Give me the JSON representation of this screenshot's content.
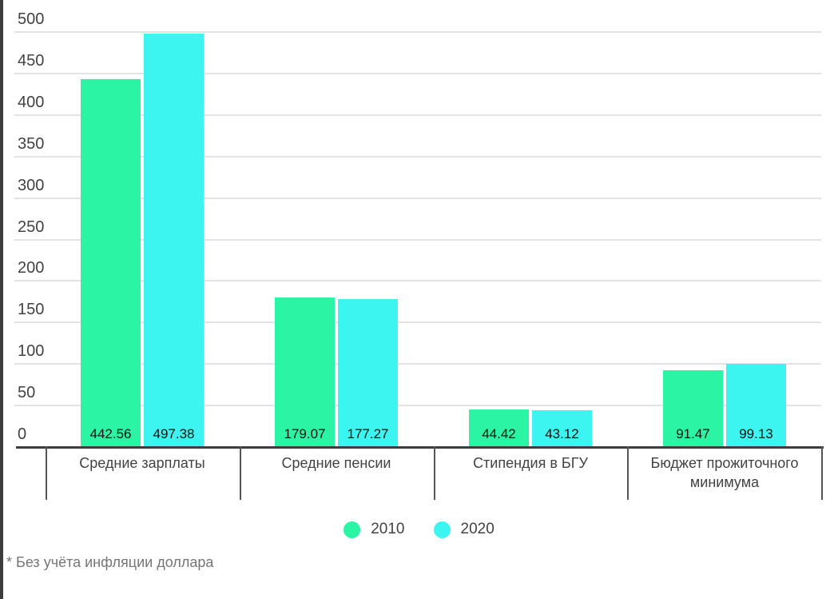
{
  "chart_data": {
    "type": "bar",
    "title": "",
    "xlabel": "",
    "ylabel": "",
    "categories": [
      "Средние зарплаты",
      "Средние пенсии",
      "Стипендия в БГУ",
      "Бюджет прожиточного минимума"
    ],
    "series": [
      {
        "name": "2010",
        "color": "#2BF5A4",
        "values": [
          442.56,
          179.07,
          44.42,
          91.47
        ],
        "value_labels": [
          "442.56",
          "179.07",
          "44.42",
          "91.47"
        ]
      },
      {
        "name": "2020",
        "color": "#3DF5F0",
        "values": [
          497.38,
          177.27,
          43.12,
          99.13
        ],
        "value_labels": [
          "497.38",
          "177.27",
          "43.12",
          "99.13"
        ]
      }
    ],
    "ylim": [
      0,
      500
    ],
    "ytick_step": 50,
    "yticks": [
      "0",
      "50",
      "100",
      "150",
      "200",
      "250",
      "300",
      "350",
      "400",
      "450",
      "500"
    ],
    "grid": true,
    "legend_position": "bottom",
    "value_labels_inside_bars": true
  },
  "footnote": "* Без учёта инфляции доллара",
  "colors": {
    "grid": "#E3E3E3",
    "axis_line": "#3D3D3D",
    "tick_line": "#555555",
    "axis_text": "#424242",
    "category_text": "#424242",
    "value_label_text": "#111111",
    "legend_text": "#424242",
    "footnote_text": "#757575",
    "left_border": "#3D3D3D",
    "background": "#FFFFFF"
  }
}
